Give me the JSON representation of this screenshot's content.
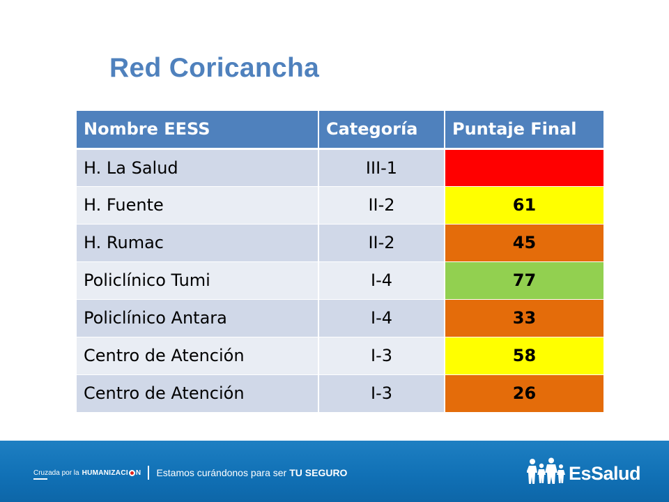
{
  "title": "Red Coricancha",
  "table": {
    "headers": [
      "Nombre EESS",
      "Categoría",
      "Puntaje Final"
    ],
    "rows": [
      {
        "name": "H. La Salud",
        "category": "III-1",
        "score": "",
        "score_color": "#ff0000"
      },
      {
        "name": "H. Fuente",
        "category": "II-2",
        "score": "61",
        "score_color": "#ffff00"
      },
      {
        "name": "H. Rumac",
        "category": "II-2",
        "score": "45",
        "score_color": "#e46c0a"
      },
      {
        "name": "Policlínico Tumi",
        "category": "I-4",
        "score": "77",
        "score_color": "#92d050"
      },
      {
        "name": "Policlínico Antara",
        "category": "I-4",
        "score": "33",
        "score_color": "#e46c0a"
      },
      {
        "name": "Centro de Atención",
        "category": "I-3",
        "score": "58",
        "score_color": "#ffff00"
      },
      {
        "name": "Centro de Atención",
        "category": "I-3",
        "score": "26",
        "score_color": "#e46c0a"
      }
    ]
  },
  "footer": {
    "campaign_prefix": "Cruzada por la",
    "campaign_word_start": "HUMANIZACI",
    "campaign_word_end": "N",
    "tagline": "Estamos curándonos para ser",
    "tagline_bold": "TU SEGURO",
    "logo_text": "EsSalud",
    "logo_icon": "family-figures-icon"
  },
  "colors": {
    "title": "#4f81bd",
    "header_bg": "#4f81bd",
    "row_odd": "#d0d8e8",
    "row_even": "#e9edf4",
    "footer_bg": "#1171b6"
  }
}
